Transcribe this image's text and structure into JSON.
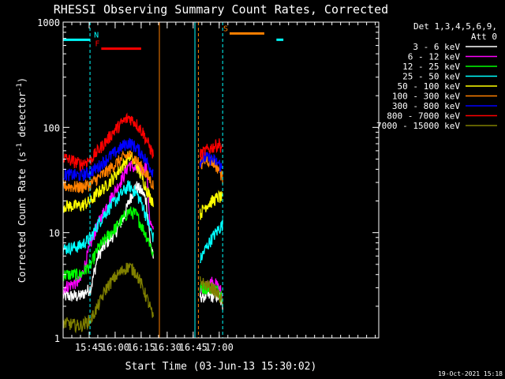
{
  "chart_data": {
    "type": "line",
    "title": "RHESSI Observing Summary Count Rates, Corrected",
    "xlabel": "Start Time (03-Jun-13 15:30:02)",
    "ylabel": "Corrected Count Rate (s",
    "ylabel_sup1": "-1",
    "ylabel_mid": " detector",
    "ylabel_sup2": "-1",
    "ylabel_end": ")",
    "y_scale": "log",
    "xlim_min": [
      1530,
      1712
    ],
    "ylim": [
      1,
      1000
    ],
    "x_ticks": [
      {
        "min": 1545,
        "label": "15:45"
      },
      {
        "min": 1560,
        "label": "16:00"
      },
      {
        "min": 1575,
        "label": "16:15"
      },
      {
        "min": 1590,
        "label": "16:30"
      },
      {
        "min": 1605,
        "label": "16:45"
      },
      {
        "min": 1620,
        "label": "17:00"
      }
    ],
    "y_ticks": [
      {
        "value": 1,
        "label": "1"
      },
      {
        "value": 10,
        "label": "10"
      },
      {
        "value": 100,
        "label": "100"
      },
      {
        "value": 1000,
        "label": "1000"
      }
    ],
    "legend": {
      "header1": "Det 1,3,4,5,6,9,",
      "header2": "Att 0",
      "placement": "right"
    },
    "timestamp": "19-Oct-2021 15:18",
    "flags": [
      {
        "label": "N",
        "color": "#00ffff",
        "spans": [
          [
            1530,
            1545.5
          ],
          [
            1653,
            1657
          ]
        ],
        "level": 680
      },
      {
        "label": "F",
        "color": "#ff0000",
        "spans": [
          [
            1552,
            1575
          ]
        ],
        "level": 560
      },
      {
        "label": "S",
        "color": "#ff8000",
        "spans": [
          [
            1626,
            1646
          ]
        ],
        "level": 780
      }
    ],
    "night_lines": [
      {
        "min": 1545.5,
        "style": "dashed",
        "color": "#00ffff"
      },
      {
        "min": 1606,
        "style": "solid",
        "color": "#00ffff"
      },
      {
        "min": 1622,
        "style": "dashed",
        "color": "#00ffff"
      },
      {
        "min": 1585.5,
        "style": "solid",
        "color": "#ff8000"
      },
      {
        "min": 1608,
        "style": "dashed",
        "color": "#ff8000"
      }
    ],
    "series": [
      {
        "name": "3 - 6 keV",
        "color": "#ffffff",
        "x": [
          1530,
          1540,
          1546,
          1550,
          1555,
          1560,
          1565,
          1568,
          1572,
          1576,
          1578,
          1580,
          1582,
          1609,
          1612,
          1616,
          1620,
          1622
        ],
        "y": [
          2.5,
          2.5,
          3,
          6,
          8,
          10,
          14,
          20,
          28,
          24,
          20,
          9,
          5.5,
          2.5,
          2.5,
          2.5,
          2.5,
          2
        ]
      },
      {
        "name": "6 - 12 keV",
        "color": "#ff00ff",
        "x": [
          1530,
          1540,
          1546,
          1550,
          1555,
          1560,
          1565,
          1568,
          1572,
          1576,
          1578,
          1580,
          1582,
          1609,
          1612,
          1616,
          1620,
          1622
        ],
        "y": [
          3,
          3.5,
          8,
          12,
          18,
          25,
          35,
          45,
          40,
          38,
          45,
          13,
          10,
          3,
          3,
          3.5,
          3,
          2.5
        ]
      },
      {
        "name": "12 - 25 keV",
        "color": "#00ff00",
        "x": [
          1530,
          1540,
          1546,
          1550,
          1555,
          1560,
          1565,
          1568,
          1572,
          1576,
          1580,
          1582,
          1609,
          1612,
          1616,
          1620,
          1622
        ],
        "y": [
          4,
          4,
          5,
          7,
          9,
          11,
          14,
          16,
          15,
          11,
          8,
          6,
          3,
          3,
          3,
          2.8,
          2.5
        ]
      },
      {
        "name": "25 - 50 keV",
        "color": "#00ffff",
        "x": [
          1530,
          1540,
          1546,
          1550,
          1555,
          1560,
          1565,
          1568,
          1572,
          1576,
          1580,
          1582,
          1609,
          1612,
          1616,
          1620,
          1622
        ],
        "y": [
          7,
          7.5,
          9,
          12,
          16,
          20,
          25,
          28,
          24,
          18,
          11,
          9,
          5.5,
          7,
          9,
          11,
          12
        ]
      },
      {
        "name": "50 - 100 keV",
        "color": "#ffff00",
        "x": [
          1530,
          1540,
          1546,
          1550,
          1555,
          1560,
          1565,
          1568,
          1572,
          1576,
          1580,
          1582,
          1609,
          1612,
          1616,
          1620,
          1622
        ],
        "y": [
          18,
          18,
          20,
          24,
          28,
          35,
          45,
          55,
          45,
          32,
          22,
          20,
          15,
          18,
          20,
          22,
          21
        ]
      },
      {
        "name": "100 - 300 keV",
        "color": "#ff8000",
        "x": [
          1530,
          1540,
          1546,
          1550,
          1555,
          1560,
          1565,
          1568,
          1572,
          1576,
          1580,
          1582,
          1609,
          1612,
          1616,
          1620,
          1622
        ],
        "y": [
          28,
          27,
          29,
          33,
          38,
          45,
          52,
          55,
          50,
          40,
          32,
          28,
          45,
          50,
          48,
          40,
          33
        ]
      },
      {
        "name": "300 - 800 keV",
        "color": "#0000ff",
        "x": [
          1530,
          1540,
          1546,
          1550,
          1555,
          1560,
          1565,
          1568,
          1572,
          1576,
          1580,
          1582,
          1609,
          1612,
          1616,
          1620,
          1622
        ],
        "y": [
          36,
          35,
          38,
          42,
          50,
          58,
          68,
          72,
          65,
          55,
          42,
          38,
          48,
          52,
          50,
          45,
          40
        ]
      },
      {
        "name": "800 - 7000 keV",
        "color": "#ff0000",
        "x": [
          1530,
          1540,
          1546,
          1550,
          1555,
          1560,
          1565,
          1568,
          1572,
          1576,
          1580,
          1582,
          1609,
          1612,
          1616,
          1620,
          1622
        ],
        "y": [
          52,
          45,
          50,
          60,
          75,
          95,
          115,
          125,
          110,
          90,
          65,
          55,
          55,
          60,
          65,
          70,
          62
        ]
      },
      {
        "name": "7000 - 15000 keV",
        "color": "#808000",
        "x": [
          1530,
          1540,
          1546,
          1550,
          1555,
          1560,
          1565,
          1568,
          1572,
          1576,
          1580,
          1582,
          1609,
          1612,
          1616,
          1620,
          1622
        ],
        "y": [
          1.4,
          1.3,
          1.5,
          2,
          3,
          3.8,
          4.5,
          4.8,
          4.2,
          3,
          2,
          1.5,
          3.5,
          3.2,
          3,
          2.5,
          2.2
        ]
      }
    ]
  }
}
